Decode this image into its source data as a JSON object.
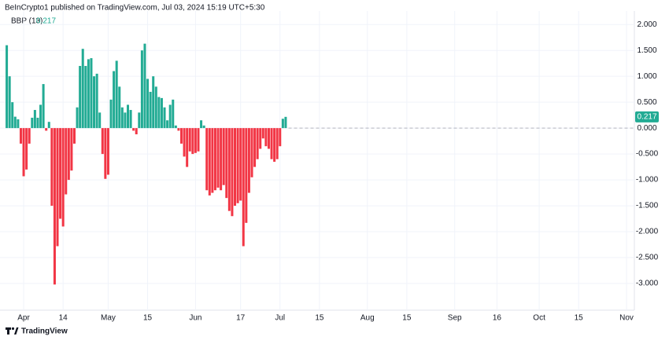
{
  "chart_data": {
    "type": "bar",
    "header": "BeInCrypto1 published on TradingView.com, Jul 03, 2024 15:19 UTC+5:30",
    "brand": "TradingView",
    "x": [
      -6,
      -5,
      -4,
      -3,
      -2,
      -1,
      0,
      1,
      2,
      3,
      4,
      5,
      6,
      7,
      8,
      9,
      10,
      11,
      12,
      13,
      14,
      15,
      16,
      17,
      18,
      19,
      20,
      21,
      22,
      23,
      24,
      25,
      26,
      27,
      28,
      29,
      30,
      31,
      32,
      33,
      34,
      35,
      36,
      37,
      38,
      39,
      40,
      41,
      42,
      43,
      44,
      45,
      46,
      47,
      48,
      49,
      50,
      51,
      52,
      53,
      54,
      55,
      56,
      57,
      58,
      59,
      60,
      61,
      62,
      63,
      64,
      65,
      66,
      67,
      68,
      69,
      70,
      71,
      72,
      73,
      74,
      75,
      76,
      77,
      78,
      79,
      80,
      81,
      82,
      83,
      84,
      85,
      86,
      87,
      88,
      89,
      90,
      91,
      92,
      93
    ],
    "series": [
      {
        "name": "BBP (13)",
        "color_up": "#22ab94",
        "color_down": "#f23645",
        "values": [
          1.6,
          1.0,
          0.5,
          0.22,
          0.17,
          -0.3,
          -0.93,
          -0.8,
          -0.3,
          0.2,
          0.35,
          0.2,
          0.45,
          0.85,
          -0.05,
          0.12,
          -1.5,
          -3.02,
          -2.28,
          -1.75,
          -1.9,
          -1.28,
          -1.0,
          -0.82,
          -0.3,
          0.4,
          1.2,
          1.53,
          1.2,
          1.33,
          1.35,
          1.0,
          1.05,
          0.3,
          -0.5,
          -0.98,
          -0.9,
          0.55,
          1.1,
          1.3,
          0.8,
          0.4,
          0.3,
          0.45,
          0.35,
          -0.05,
          -0.12,
          0.3,
          1.5,
          1.63,
          0.95,
          0.7,
          1.0,
          0.8,
          0.6,
          0.58,
          0.4,
          0.15,
          0.45,
          0.55,
          0.05,
          -0.05,
          -0.3,
          -0.55,
          -0.75,
          -0.45,
          -0.5,
          -0.48,
          -0.45,
          0.15,
          0.05,
          -1.2,
          -1.3,
          -1.25,
          -1.2,
          -1.15,
          -1.2,
          -1.1,
          -1.35,
          -1.6,
          -1.7,
          -1.5,
          -1.45,
          -1.4,
          -2.28,
          -1.83,
          -1.25,
          -0.95,
          -0.75,
          -0.6,
          -0.4,
          -0.2,
          -0.35,
          -0.4,
          -0.6,
          -0.65,
          -0.6,
          -0.35,
          0.18,
          0.217
        ]
      }
    ],
    "xlim": [
      -7,
      216.5
    ],
    "xticks": [
      {
        "value": 0,
        "label": "Apr"
      },
      14,
      {
        "value": 30,
        "label": "May"
      },
      {
        "value": 44,
        "label": "15"
      },
      {
        "value": 61,
        "label": "Jun"
      },
      {
        "value": 77,
        "label": "17"
      },
      {
        "value": 91,
        "label": "Jul"
      },
      {
        "value": 105,
        "label": "15"
      },
      {
        "value": 122,
        "label": "Aug"
      },
      {
        "value": 136,
        "label": "15"
      },
      {
        "value": 153,
        "label": "Sep"
      },
      {
        "value": 168,
        "label": "16"
      },
      {
        "value": 183,
        "label": "Oct"
      },
      {
        "value": 197,
        "label": "15"
      },
      {
        "value": 214,
        "label": "Nov"
      }
    ],
    "ylim": [
      -3.47,
      2.17
    ],
    "yticks": [
      {
        "value": 2,
        "label": "2.000"
      },
      {
        "value": 1.5,
        "label": "1.500"
      },
      {
        "value": 1,
        "label": "1.000"
      },
      {
        "value": 0.5,
        "label": "0.500"
      },
      {
        "value": 0,
        "label": "0.000"
      },
      {
        "value": -0.5,
        "label": "-0.500"
      },
      {
        "value": -1,
        "label": "-1.000"
      },
      {
        "value": -1.5,
        "label": "-1.500"
      },
      {
        "value": -2,
        "label": "-2.000"
      },
      {
        "value": -2.5,
        "label": "-2.500"
      },
      {
        "value": -3,
        "label": "-3.000"
      }
    ],
    "grid": true
  }
}
